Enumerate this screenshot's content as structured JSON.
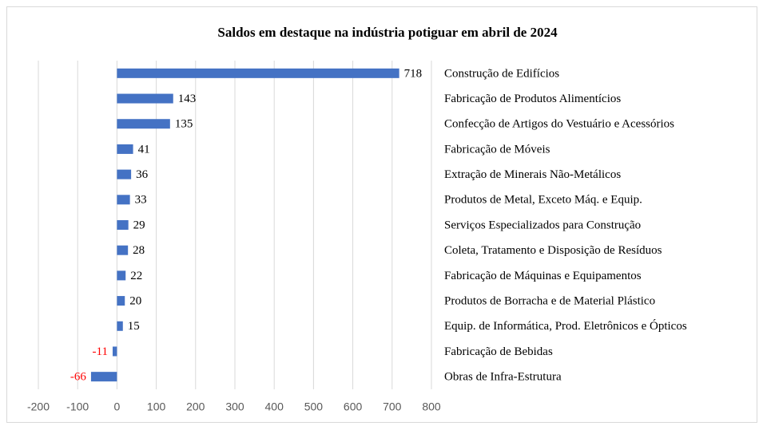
{
  "chart_data": {
    "type": "barh",
    "title": "Saldos em destaque na indústria potiguar em abril de 2024",
    "categories": [
      "Construção de Edifícios",
      "Fabricação de Produtos Alimentícios",
      "Confecção de Artigos do Vestuário e Acessórios",
      "Fabricação de Móveis",
      "Extração de Minerais Não-Metálicos",
      "Produtos de Metal, Exceto Máq. e Equip.",
      "Serviços Especializados para Construção",
      "Coleta, Tratamento e Disposição de Resíduos",
      "Fabricação de Máquinas e Equipamentos",
      "Produtos de Borracha e de Material Plástico",
      "Equip. de Informática, Prod. Eletrônicos e Ópticos",
      "Fabricação de Bebidas",
      "Obras de Infra-Estrutura"
    ],
    "values": [
      718,
      143,
      135,
      41,
      36,
      33,
      29,
      28,
      22,
      20,
      15,
      -11,
      -66
    ],
    "color": "#4472c4",
    "negative_label_color": "#ff0000",
    "xlim": [
      -200,
      800
    ],
    "xticks": [
      -200,
      -100,
      0,
      100,
      200,
      300,
      400,
      500,
      600,
      700,
      800
    ],
    "grid": true
  }
}
